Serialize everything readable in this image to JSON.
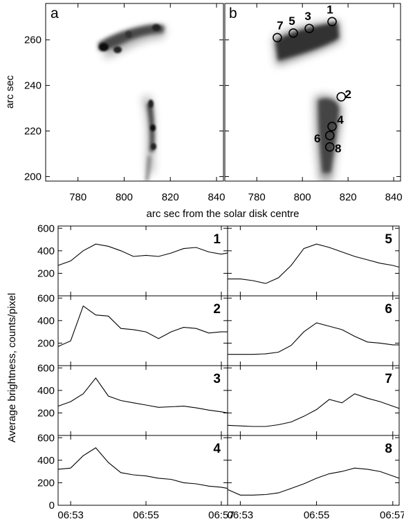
{
  "images": {
    "xlabel": "arc sec from the solar disk centre",
    "ylabel": "arc sec",
    "x_ticks": [
      "780",
      "800",
      "820",
      "840"
    ],
    "y_ticks": [
      "200",
      "220",
      "240",
      "260"
    ],
    "xlim": [
      766,
      843
    ],
    "ylim": [
      198,
      276
    ],
    "panels": [
      {
        "letter": "a"
      },
      {
        "letter": "b",
        "regions": [
          {
            "label": "1",
            "x": 813,
            "y": 268
          },
          {
            "label": "2",
            "x": 817,
            "y": 235
          },
          {
            "label": "3",
            "x": 803,
            "y": 265
          },
          {
            "label": "4",
            "x": 813,
            "y": 222
          },
          {
            "label": "5",
            "x": 796,
            "y": 263
          },
          {
            "label": "6",
            "x": 812,
            "y": 218
          },
          {
            "label": "7",
            "x": 789,
            "y": 261
          },
          {
            "label": "8",
            "x": 812,
            "y": 213
          }
        ]
      }
    ]
  },
  "lightcurves": {
    "ylabel": "Average brightness, counts/pixel",
    "x_ticks": [
      "06:53",
      "06:55",
      "06:57"
    ],
    "y_ticks": [
      "0",
      "200",
      "400",
      "600"
    ],
    "ylim": [
      0,
      620
    ]
  },
  "chart_data": [
    {
      "type": "heatmap",
      "panel": "a",
      "xlabel": "arc sec from the solar disk centre",
      "ylabel": "arc sec",
      "xlim": [
        766,
        843
      ],
      "ylim": [
        198,
        276
      ],
      "colormap": "inverted grayscale"
    },
    {
      "type": "heatmap",
      "panel": "b",
      "xlabel": "arc sec from the solar disk centre",
      "ylabel": "arc sec",
      "xlim": [
        766,
        843
      ],
      "ylim": [
        198,
        276
      ],
      "colormap": "inverted grayscale",
      "annotations": [
        "1",
        "2",
        "3",
        "4",
        "5",
        "6",
        "7",
        "8"
      ]
    },
    {
      "type": "line",
      "ylabel": "Average brightness, counts/pixel",
      "x": [
        "06:52:40",
        "06:53:00",
        "06:53:20",
        "06:53:40",
        "06:54:00",
        "06:54:20",
        "06:54:40",
        "06:55:00",
        "06:55:20",
        "06:55:40",
        "06:56:00",
        "06:56:20",
        "06:56:40",
        "06:57:00",
        "06:57:10"
      ],
      "series": [
        {
          "name": "1",
          "values": [
            270,
            310,
            400,
            460,
            440,
            400,
            350,
            360,
            350,
            380,
            420,
            430,
            390,
            370,
            380
          ]
        },
        {
          "name": "2",
          "values": [
            170,
            220,
            530,
            450,
            440,
            330,
            320,
            300,
            240,
            300,
            340,
            330,
            290,
            300,
            300
          ]
        },
        {
          "name": "3",
          "values": [
            260,
            300,
            370,
            510,
            350,
            310,
            290,
            270,
            250,
            255,
            260,
            245,
            225,
            210,
            200
          ]
        },
        {
          "name": "4",
          "values": [
            320,
            330,
            440,
            510,
            380,
            290,
            270,
            260,
            240,
            230,
            200,
            190,
            170,
            160,
            150
          ]
        },
        {
          "name": "5",
          "values": [
            150,
            150,
            135,
            110,
            160,
            270,
            420,
            460,
            430,
            390,
            350,
            320,
            290,
            270,
            255
          ]
        },
        {
          "name": "6",
          "values": [
            100,
            100,
            100,
            105,
            120,
            180,
            300,
            380,
            350,
            320,
            260,
            210,
            200,
            185,
            185
          ]
        },
        {
          "name": "7",
          "values": [
            90,
            85,
            80,
            80,
            95,
            120,
            170,
            230,
            320,
            290,
            370,
            330,
            300,
            260,
            240
          ]
        },
        {
          "name": "8",
          "values": [
            140,
            90,
            90,
            95,
            110,
            150,
            190,
            240,
            280,
            300,
            330,
            320,
            300,
            260,
            240
          ]
        }
      ]
    }
  ]
}
